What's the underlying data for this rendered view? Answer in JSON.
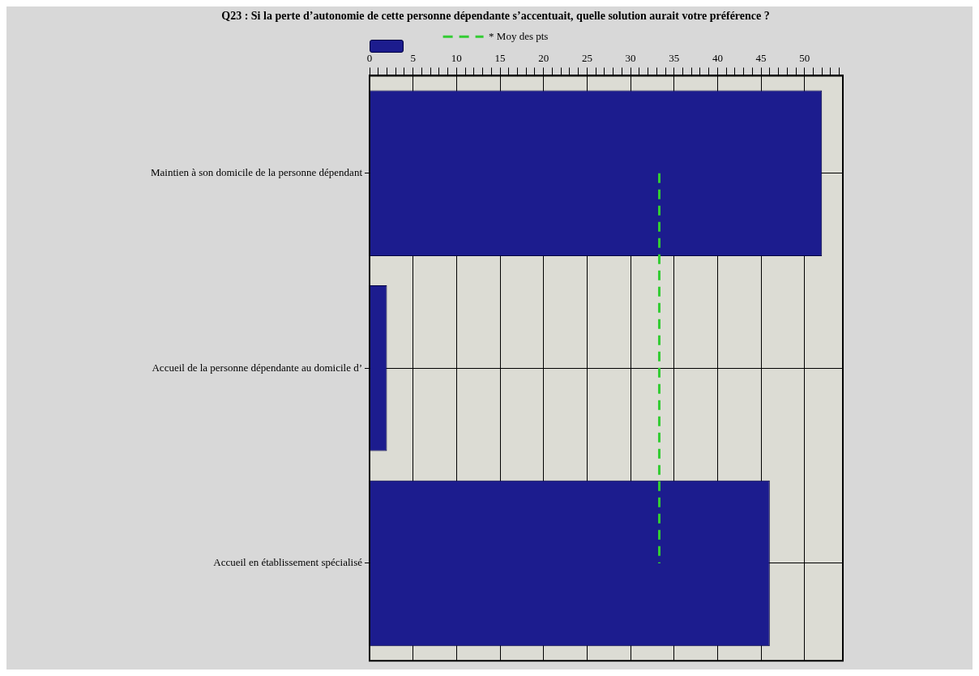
{
  "chart_data": {
    "type": "bar",
    "orientation": "horizontal",
    "title": "Q23 : Si la perte d’autonomie de cette personne dépendante s’accentuait, quelle solution aurait votre préférence ?",
    "categories": [
      "Maintien à son domicile de la personne dépendant",
      "Accueil de la personne dépendante au domicile d’",
      "Accueil en établissement spécialisé"
    ],
    "values": [
      52,
      2,
      46
    ],
    "color": "#1c1c8e",
    "xlim": [
      0,
      54.4
    ],
    "xticks": [
      0,
      {
        "value": 1,
        "label": null
      },
      {
        "value": 2,
        "label": null
      },
      {
        "value": 3,
        "label": null
      },
      {
        "value": 4,
        "label": null
      },
      5,
      {
        "value": 6,
        "label": null
      },
      {
        "value": 7,
        "label": null
      },
      {
        "value": 8,
        "label": null
      },
      {
        "value": 9,
        "label": null
      },
      10,
      {
        "value": 11,
        "label": null
      },
      {
        "value": 12,
        "label": null
      },
      {
        "value": 13,
        "label": null
      },
      {
        "value": 14,
        "label": null
      },
      15,
      {
        "value": 16,
        "label": null
      },
      {
        "value": 17,
        "label": null
      },
      {
        "value": 18,
        "label": null
      },
      {
        "value": 19,
        "label": null
      },
      20,
      {
        "value": 21,
        "label": null
      },
      {
        "value": 22,
        "label": null
      },
      {
        "value": 23,
        "label": null
      },
      {
        "value": 24,
        "label": null
      },
      25,
      {
        "value": 26,
        "label": null
      },
      {
        "value": 27,
        "label": null
      },
      {
        "value": 28,
        "label": null
      },
      {
        "value": 29,
        "label": null
      },
      30,
      {
        "value": 31,
        "label": null
      },
      {
        "value": 32,
        "label": null
      },
      {
        "value": 33,
        "label": null
      },
      {
        "value": 34,
        "label": null
      },
      35,
      {
        "value": 36,
        "label": null
      },
      {
        "value": 37,
        "label": null
      },
      {
        "value": 38,
        "label": null
      },
      {
        "value": 39,
        "label": null
      },
      40,
      {
        "value": 41,
        "label": null
      },
      {
        "value": 42,
        "label": null
      },
      {
        "value": 43,
        "label": null
      },
      {
        "value": 44,
        "label": null
      },
      45,
      {
        "value": 46,
        "label": null
      },
      {
        "value": 47,
        "label": null
      },
      {
        "value": 48,
        "label": null
      },
      {
        "value": 49,
        "label": null
      },
      50,
      {
        "value": 51,
        "label": null
      },
      {
        "value": 52,
        "label": null
      },
      {
        "value": 53,
        "label": null
      },
      {
        "value": 54,
        "label": null
      }
    ],
    "ref_lines": [
      {
        "axis": "x",
        "value": 33.3,
        "label": "* Moy des pts",
        "color": "#33cc33",
        "line_style": "dashed"
      }
    ],
    "grid": true,
    "legend": "top"
  }
}
